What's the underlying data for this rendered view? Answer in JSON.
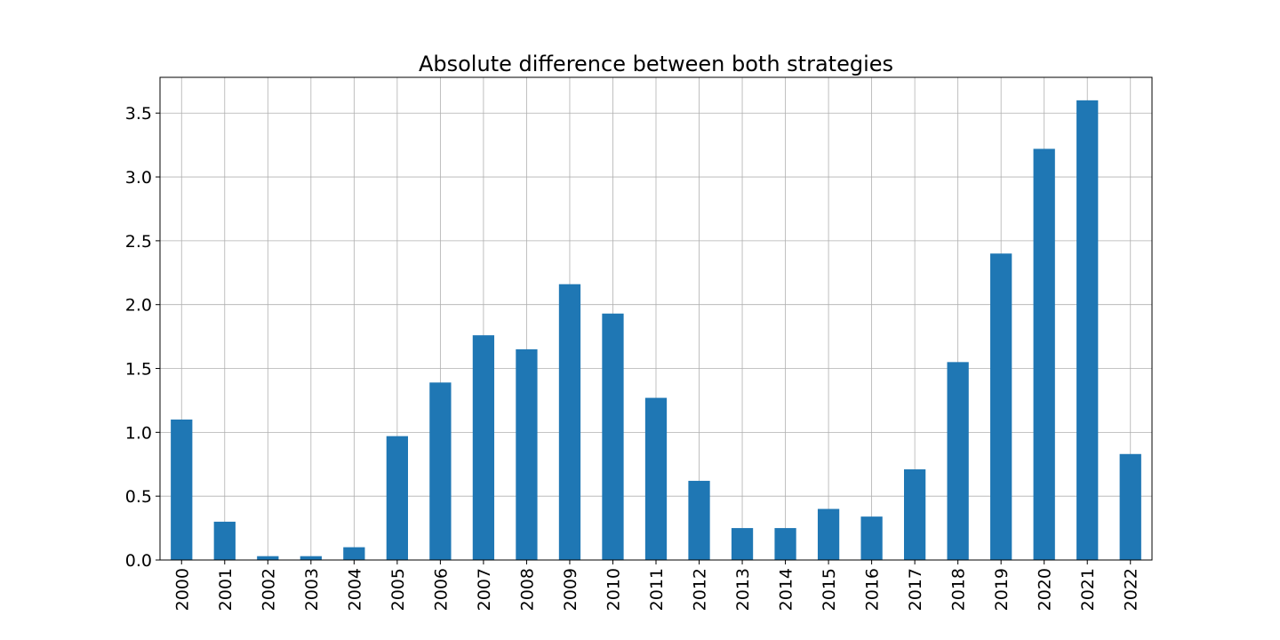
{
  "chart_data": {
    "type": "bar",
    "title": "Absolute difference between both strategies",
    "xlabel": "",
    "ylabel": "",
    "categories": [
      "2000",
      "2001",
      "2002",
      "2003",
      "2004",
      "2005",
      "2006",
      "2007",
      "2008",
      "2009",
      "2010",
      "2011",
      "2012",
      "2013",
      "2014",
      "2015",
      "2016",
      "2017",
      "2018",
      "2019",
      "2020",
      "2021",
      "2022"
    ],
    "values": [
      1.1,
      0.3,
      0.03,
      0.03,
      0.1,
      0.97,
      1.39,
      1.76,
      1.65,
      2.16,
      1.93,
      1.27,
      0.62,
      0.25,
      0.25,
      0.4,
      0.34,
      0.71,
      1.55,
      2.4,
      3.22,
      3.6,
      0.83
    ],
    "ylim": [
      0,
      3.78
    ],
    "yticks": [
      "0.0",
      "0.5",
      "1.0",
      "1.5",
      "2.0",
      "2.5",
      "3.0",
      "3.5"
    ],
    "grid": true,
    "bar_color": "#1f77b4",
    "legend": "none"
  }
}
